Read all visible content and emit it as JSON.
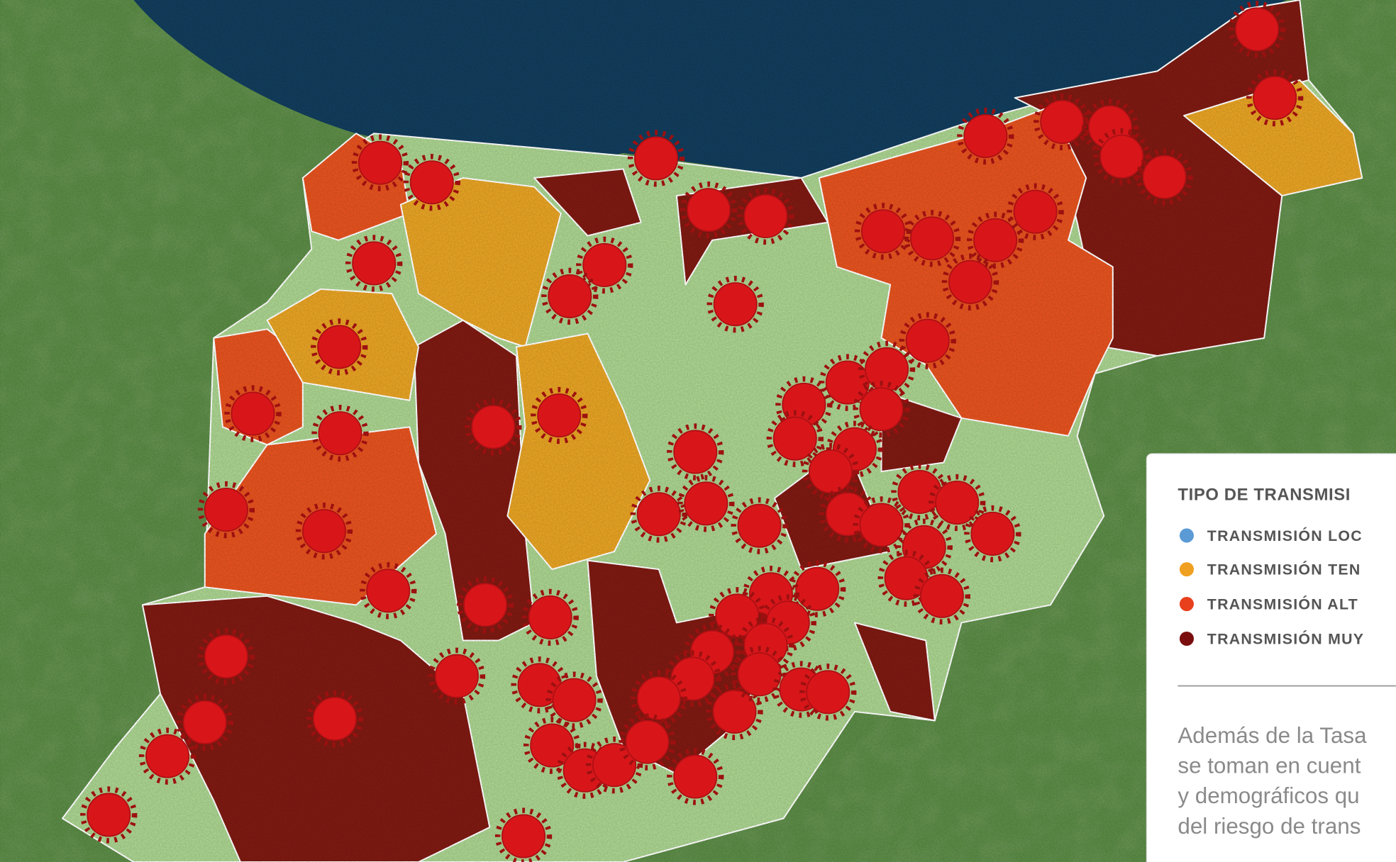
{
  "legend": {
    "title": "TIPO DE TRANSMISI",
    "items": [
      "TRANSMISIÓN LOC",
      "TRANSMISIÓN TEN",
      "TRANSMISIÓN ALT",
      "TRANSMISIÓN MUY"
    ]
  },
  "note": {
    "lines": [
      "Además de la Tasa",
      "se toman en cuent",
      "y demográficos qu",
      "del riesgo de trans"
    ]
  }
}
